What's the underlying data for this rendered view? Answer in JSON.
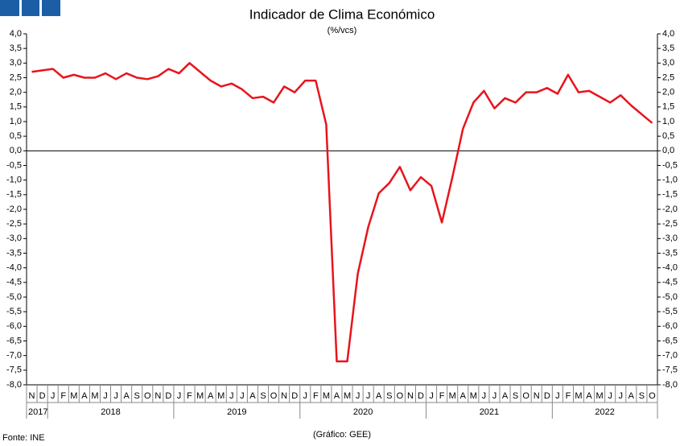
{
  "chart_data": {
    "type": "line",
    "title": "Indicador de Clima Económico",
    "subtitle": "(%/vcs)",
    "source": "Fonte: INE",
    "credit": "(Gráfico: GEE)",
    "categories": [
      "N",
      "D",
      "J",
      "F",
      "M",
      "A",
      "M",
      "J",
      "J",
      "A",
      "S",
      "O",
      "N",
      "D",
      "J",
      "F",
      "M",
      "A",
      "M",
      "J",
      "J",
      "A",
      "S",
      "O",
      "N",
      "D",
      "J",
      "F",
      "M",
      "A",
      "M",
      "J",
      "J",
      "A",
      "S",
      "O",
      "N",
      "D",
      "J",
      "F",
      "M",
      "A",
      "M",
      "J",
      "J",
      "A",
      "S",
      "O",
      "N",
      "D",
      "J",
      "F",
      "M",
      "A",
      "M",
      "J",
      "J",
      "A",
      "S",
      "O"
    ],
    "years": [
      "2017",
      "2018",
      "2019",
      "2020",
      "2021",
      "2022"
    ],
    "values": [
      2.7,
      2.75,
      2.8,
      2.5,
      2.6,
      2.5,
      2.5,
      2.65,
      2.45,
      2.65,
      2.5,
      2.45,
      2.55,
      2.8,
      2.65,
      3.0,
      2.7,
      2.4,
      2.2,
      2.3,
      2.1,
      1.8,
      1.85,
      1.65,
      2.2,
      2.0,
      2.4,
      2.4,
      0.9,
      -7.2,
      -7.2,
      -4.2,
      -2.6,
      -1.45,
      -1.1,
      -0.55,
      -1.35,
      -0.9,
      -1.2,
      -2.45,
      -0.9,
      0.75,
      1.65,
      2.05,
      1.45,
      1.8,
      1.65,
      2.0,
      2.0,
      2.15,
      1.95,
      2.6,
      2.0,
      2.05,
      1.85,
      1.65,
      1.9,
      1.55,
      1.25,
      0.95
    ],
    "color": "#e8141c",
    "ylim": [
      -8,
      4
    ],
    "yticks": [
      {
        "value": 4,
        "label": "4,0"
      },
      {
        "value": 3.5,
        "label": "3,5"
      },
      {
        "value": 3,
        "label": "3,0"
      },
      {
        "value": 2.5,
        "label": "2,5"
      },
      {
        "value": 2,
        "label": "2,0"
      },
      {
        "value": 1.5,
        "label": "1,5"
      },
      {
        "value": 1,
        "label": "1,0"
      },
      {
        "value": 0.5,
        "label": "0,5"
      },
      {
        "value": 0,
        "label": "0,0"
      },
      {
        "value": -0.5,
        "label": "-0,5"
      },
      {
        "value": -1,
        "label": "-1,0"
      },
      {
        "value": -1.5,
        "label": "-1,5"
      },
      {
        "value": -2,
        "label": "-2,0"
      },
      {
        "value": -2.5,
        "label": "-2,5"
      },
      {
        "value": -3,
        "label": "-3,0"
      },
      {
        "value": -3.5,
        "label": "-3,5"
      },
      {
        "value": -4,
        "label": "-4,0"
      },
      {
        "value": -4.5,
        "label": "-4,5"
      },
      {
        "value": -5,
        "label": "-5,0"
      },
      {
        "value": -5.5,
        "label": "-5,5"
      },
      {
        "value": -6,
        "label": "-6,0"
      },
      {
        "value": -6.5,
        "label": "-6,5"
      },
      {
        "value": -7,
        "label": "-7,0"
      },
      {
        "value": -7.5,
        "label": "-7,5"
      },
      {
        "value": -8,
        "label": "-8,0"
      }
    ],
    "grid": false
  }
}
